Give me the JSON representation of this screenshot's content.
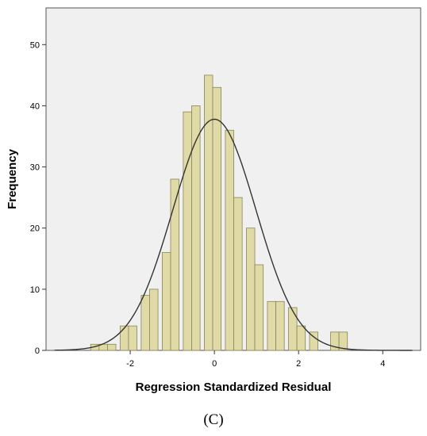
{
  "chart_data": {
    "type": "bar",
    "xlabel": "Regression Standardized Residual",
    "ylabel": "Frequency",
    "xlim": [
      -4.0,
      4.9
    ],
    "ylim": [
      0,
      56
    ],
    "x_ticks": [
      -2,
      0,
      2,
      4
    ],
    "y_ticks": [
      0,
      10,
      20,
      30,
      40,
      50
    ],
    "bin_width": 0.2,
    "bins": [
      {
        "start": -2.94,
        "count": 1
      },
      {
        "start": -2.74,
        "count": 1
      },
      {
        "start": -2.54,
        "count": 1
      },
      {
        "start": -2.24,
        "count": 4
      },
      {
        "start": -2.04,
        "count": 4
      },
      {
        "start": -1.74,
        "count": 9
      },
      {
        "start": -1.54,
        "count": 10
      },
      {
        "start": -1.24,
        "count": 16
      },
      {
        "start": -1.04,
        "count": 28
      },
      {
        "start": -0.74,
        "count": 39
      },
      {
        "start": -0.54,
        "count": 40
      },
      {
        "start": -0.24,
        "count": 45
      },
      {
        "start": -0.04,
        "count": 43
      },
      {
        "start": 0.26,
        "count": 36
      },
      {
        "start": 0.46,
        "count": 25
      },
      {
        "start": 0.76,
        "count": 20
      },
      {
        "start": 0.96,
        "count": 14
      },
      {
        "start": 1.26,
        "count": 8
      },
      {
        "start": 1.46,
        "count": 8
      },
      {
        "start": 1.76,
        "count": 7
      },
      {
        "start": 1.96,
        "count": 4
      },
      {
        "start": 2.26,
        "count": 3
      },
      {
        "start": 2.76,
        "count": 3
      },
      {
        "start": 2.96,
        "count": 3
      }
    ],
    "normal_curve": {
      "mean": 0.0,
      "sd": 0.99,
      "peak": 37.8
    },
    "grid": false,
    "colors": {
      "bar_fill": "#e0dba6",
      "bar_stroke": "#8a845a",
      "plot_background": "#f0f0f0",
      "curve": "#333333"
    }
  },
  "caption": "(C)"
}
